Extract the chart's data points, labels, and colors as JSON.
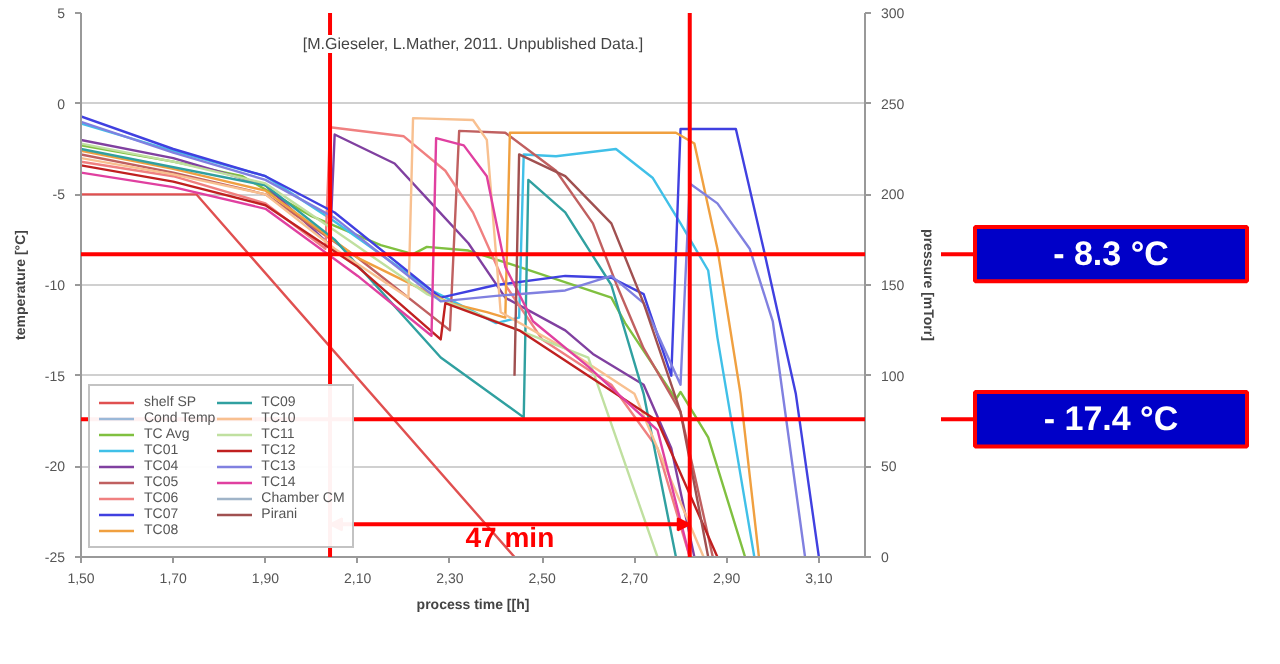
{
  "chart_data": {
    "type": "line",
    "xlabel": "process time [[h]",
    "ylabel": "temperature [°C]",
    "y2label": "pressure [mTorr]",
    "annotations": [
      "[M.Gieseler, L.Mather, 2011. Unpublished Data.]",
      "47 min",
      "- 8.3 °C",
      "- 17.4 °C"
    ],
    "xlim": [
      1.5,
      3.2
    ],
    "xticks": [
      {
        "value": 1.5,
        "label": "1,50"
      },
      {
        "value": 1.7,
        "label": "1,70"
      },
      {
        "value": 1.9,
        "label": "1,90"
      },
      {
        "value": 2.1,
        "label": "2,10"
      },
      {
        "value": 2.3,
        "label": "2,30"
      },
      {
        "value": 2.5,
        "label": "2,50"
      },
      {
        "value": 2.7,
        "label": "2,70"
      },
      {
        "value": 2.9,
        "label": "2,90"
      },
      {
        "value": 3.1,
        "label": "3,10"
      }
    ],
    "ylim": [
      -25,
      5
    ],
    "yticks": [
      -25,
      -20,
      -15,
      -10,
      -5,
      0,
      5
    ],
    "y2lim": [
      0,
      300
    ],
    "y2ticks": [
      0,
      50,
      100,
      150,
      200,
      250,
      300
    ],
    "grid": "y",
    "legend": "bottom left",
    "marker": "none",
    "line_style": "solid",
    "ref_lines": [
      {
        "axis": "y",
        "value": -8.3,
        "color": "#ff0000"
      },
      {
        "axis": "y",
        "value": -17.4,
        "color": "#ff0000"
      },
      {
        "axis": "x",
        "value": 2.04,
        "color": "#ff0000"
      },
      {
        "axis": "x",
        "value": 2.82,
        "color": "#ff0000"
      }
    ],
    "series": [
      {
        "name": "shelf SP",
        "color": "#e05050",
        "x": [
          1.5,
          1.75,
          2.44
        ],
        "values": [
          -5,
          -5,
          -25
        ]
      },
      {
        "name": "Cond Temp",
        "color": "#9ab8d8"
      },
      {
        "name": "TC Avg",
        "color": "#80c040",
        "x": [
          1.5,
          1.7,
          1.85,
          2.0,
          2.15,
          2.22,
          2.25,
          2.34,
          2.45,
          2.65,
          2.68,
          2.79,
          2.8,
          2.86,
          2.94
        ],
        "values": [
          -2.3,
          -3.2,
          -4,
          -6.2,
          -7.8,
          -8.3,
          -7.9,
          -8.1,
          -9.0,
          -10.7,
          -12.1,
          -16.3,
          -15.9,
          -18.4,
          -25
        ]
      },
      {
        "name": "TC01",
        "color": "#40c0e8",
        "x": [
          1.5,
          1.7,
          1.9,
          2.05,
          2.26,
          2.4,
          2.45,
          2.46,
          2.53,
          2.66,
          2.74,
          2.8,
          2.86,
          2.88,
          2.96
        ],
        "values": [
          -1.1,
          -2.6,
          -4.0,
          -6.5,
          -10.3,
          -12.1,
          -11.8,
          -2.8,
          -2.9,
          -2.5,
          -4.1,
          -6.6,
          -9.2,
          -12.9,
          -25
        ]
      },
      {
        "name": "TC04",
        "color": "#8040a0",
        "x": [
          1.5,
          1.7,
          1.9,
          2.04,
          2.05,
          2.18,
          2.26,
          2.34,
          2.42,
          2.55,
          2.61,
          2.72,
          2.78,
          2.83
        ],
        "values": [
          -2.0,
          -3.0,
          -4.5,
          -7.8,
          -1.7,
          -3.3,
          -5.5,
          -7.7,
          -10.7,
          -12.5,
          -13.8,
          -15.5,
          -19,
          -25
        ]
      },
      {
        "name": "TC05",
        "color": "#c06060",
        "x": [
          1.5,
          1.7,
          1.9,
          2.1,
          2.3,
          2.32,
          2.42,
          2.53,
          2.61,
          2.66,
          2.72,
          2.8,
          2.87
        ],
        "values": [
          -2.8,
          -3.8,
          -5.0,
          -8.5,
          -12.5,
          -1.5,
          -1.6,
          -3.7,
          -6.6,
          -9.9,
          -13.5,
          -17,
          -25
        ]
      },
      {
        "name": "TC06",
        "color": "#f08080",
        "x": [
          1.5,
          1.7,
          1.9,
          2.03,
          2.04,
          2.2,
          2.29,
          2.35,
          2.42,
          2.5,
          2.65,
          2.75,
          2.82
        ],
        "values": [
          -3.2,
          -4,
          -5.5,
          -8,
          -1.3,
          -1.8,
          -3.7,
          -6,
          -10,
          -13,
          -15.5,
          -19,
          -25
        ]
      },
      {
        "name": "TC07",
        "color": "#4040e0",
        "x": [
          1.5,
          1.7,
          1.9,
          2.05,
          2.28,
          2.4,
          2.55,
          2.65,
          2.72,
          2.78,
          2.8,
          2.92,
          2.98,
          3.05,
          3.1
        ],
        "values": [
          -0.7,
          -2.5,
          -4,
          -6,
          -10.7,
          -10,
          -9.5,
          -9.6,
          -10.5,
          -15,
          -1.4,
          -1.4,
          -8,
          -16,
          -25
        ]
      },
      {
        "name": "TC08",
        "color": "#f0a040",
        "x": [
          1.5,
          1.7,
          1.9,
          2.1,
          2.3,
          2.38,
          2.42,
          2.43,
          2.6,
          2.79,
          2.83,
          2.88,
          2.93,
          2.97
        ],
        "values": [
          -2.6,
          -3.6,
          -4.8,
          -8.5,
          -11,
          -11.5,
          -11.8,
          -1.6,
          -1.6,
          -1.6,
          -2.2,
          -8,
          -16,
          -25
        ]
      },
      {
        "name": "TC09",
        "color": "#30a0a0",
        "x": [
          1.5,
          1.9,
          2.05,
          2.28,
          2.46,
          2.47,
          2.55,
          2.65,
          2.72,
          2.79
        ],
        "values": [
          -2.5,
          -4.5,
          -7.5,
          -14,
          -17.3,
          -4.2,
          -6,
          -10,
          -16,
          -25
        ]
      },
      {
        "name": "TC10",
        "color": "#f8c090",
        "x": [
          1.5,
          1.7,
          1.9,
          2.05,
          2.21,
          2.22,
          2.35,
          2.38,
          2.41,
          2.55,
          2.7,
          2.85
        ],
        "values": [
          -3,
          -3.9,
          -5,
          -8,
          -10.7,
          -0.8,
          -0.9,
          -2,
          -11.5,
          -13.5,
          -16,
          -25
        ]
      },
      {
        "name": "TC11",
        "color": "#c0e0a0",
        "x": [
          1.5,
          1.7,
          1.9,
          2.05,
          2.25,
          2.4,
          2.6,
          2.75
        ],
        "values": [
          -2.2,
          -3.2,
          -4.4,
          -7,
          -10.5,
          -12,
          -14,
          -25
        ]
      },
      {
        "name": "TC12",
        "color": "#c02020",
        "x": [
          1.5,
          1.7,
          1.9,
          2.1,
          2.28,
          2.29,
          2.45,
          2.6,
          2.75,
          2.88
        ],
        "values": [
          -3.4,
          -4.3,
          -5.6,
          -9,
          -13,
          -11,
          -12.5,
          -15,
          -17.5,
          -25
        ]
      },
      {
        "name": "TC13",
        "color": "#8080e0",
        "x": [
          1.5,
          1.7,
          1.9,
          2.05,
          2.28,
          2.4,
          2.55,
          2.65,
          2.72,
          2.8,
          2.82,
          2.88,
          2.95,
          3.0,
          3.07
        ],
        "values": [
          -1.0,
          -2.7,
          -4.2,
          -6.3,
          -10.9,
          -10.6,
          -10.3,
          -9.5,
          -11,
          -15.5,
          -4.4,
          -5.5,
          -8,
          -12,
          -25
        ]
      },
      {
        "name": "TC14",
        "color": "#e040a0",
        "x": [
          1.5,
          1.7,
          1.9,
          2.1,
          2.26,
          2.27,
          2.33,
          2.38,
          2.42,
          2.48,
          2.6,
          2.75,
          2.82
        ],
        "values": [
          -3.8,
          -4.6,
          -5.8,
          -9.5,
          -12.8,
          -1.9,
          -2.3,
          -4,
          -9,
          -12,
          -14.5,
          -18,
          -25
        ]
      },
      {
        "name": "Chamber CM",
        "color": "#a0b4c8",
        "axis": "y2"
      },
      {
        "name": "Pirani",
        "color": "#a05050",
        "axis": "y2",
        "x": [
          2.44,
          2.45,
          2.55,
          2.65,
          2.72,
          2.8,
          2.86
        ],
        "values": [
          100,
          222,
          210,
          184,
          140,
          80,
          0
        ]
      }
    ]
  }
}
